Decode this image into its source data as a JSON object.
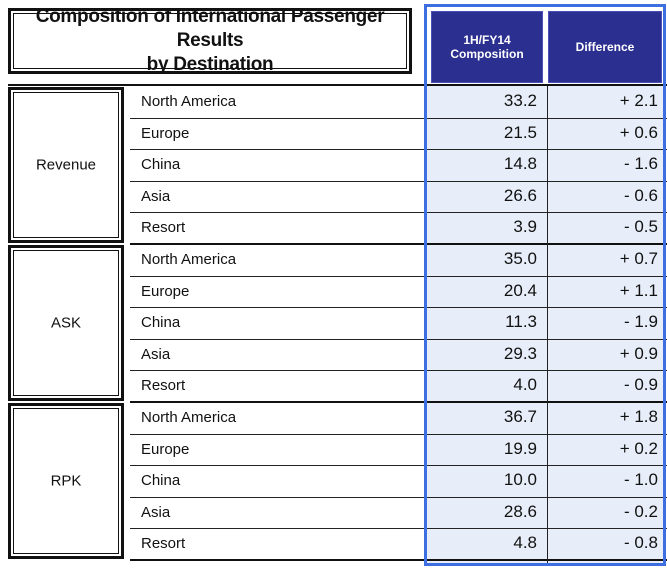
{
  "title": "Composition of International Passenger Results by Destination",
  "title_line1": "Composition of International Passenger Results",
  "title_line2": "by Destination",
  "headers": {
    "composition_line1": "1H/FY14",
    "composition_line2": "Composition",
    "difference": "Difference"
  },
  "groups": [
    {
      "label": "Revenue",
      "rows": [
        {
          "destination": "North America",
          "composition": "33.2",
          "difference": "+ 2.1"
        },
        {
          "destination": "Europe",
          "composition": "21.5",
          "difference": "+ 0.6"
        },
        {
          "destination": "China",
          "composition": "14.8",
          "difference": "- 1.6"
        },
        {
          "destination": "Asia",
          "composition": "26.6",
          "difference": "- 0.6"
        },
        {
          "destination": "Resort",
          "composition": "3.9",
          "difference": "- 0.5"
        }
      ]
    },
    {
      "label": "ASK",
      "rows": [
        {
          "destination": "North America",
          "composition": "35.0",
          "difference": "+ 0.7"
        },
        {
          "destination": "Europe",
          "composition": "20.4",
          "difference": "+ 1.1"
        },
        {
          "destination": "China",
          "composition": "11.3",
          "difference": "- 1.9"
        },
        {
          "destination": "Asia",
          "composition": "29.3",
          "difference": "+ 0.9"
        },
        {
          "destination": "Resort",
          "composition": "4.0",
          "difference": "- 0.9"
        }
      ]
    },
    {
      "label": "RPK",
      "rows": [
        {
          "destination": "North America",
          "composition": "36.7",
          "difference": "+ 1.8"
        },
        {
          "destination": "Europe",
          "composition": "19.9",
          "difference": "+ 0.2"
        },
        {
          "destination": "China",
          "composition": "10.0",
          "difference": "- 1.0"
        },
        {
          "destination": "Asia",
          "composition": "28.6",
          "difference": "- 0.2"
        },
        {
          "destination": "Resort",
          "composition": "4.8",
          "difference": "- 0.8"
        }
      ]
    }
  ],
  "colors": {
    "header_bg": "#2b2f8f",
    "highlight_frame": "#3d6fe0",
    "highlight_fill": "#e8eef9"
  }
}
